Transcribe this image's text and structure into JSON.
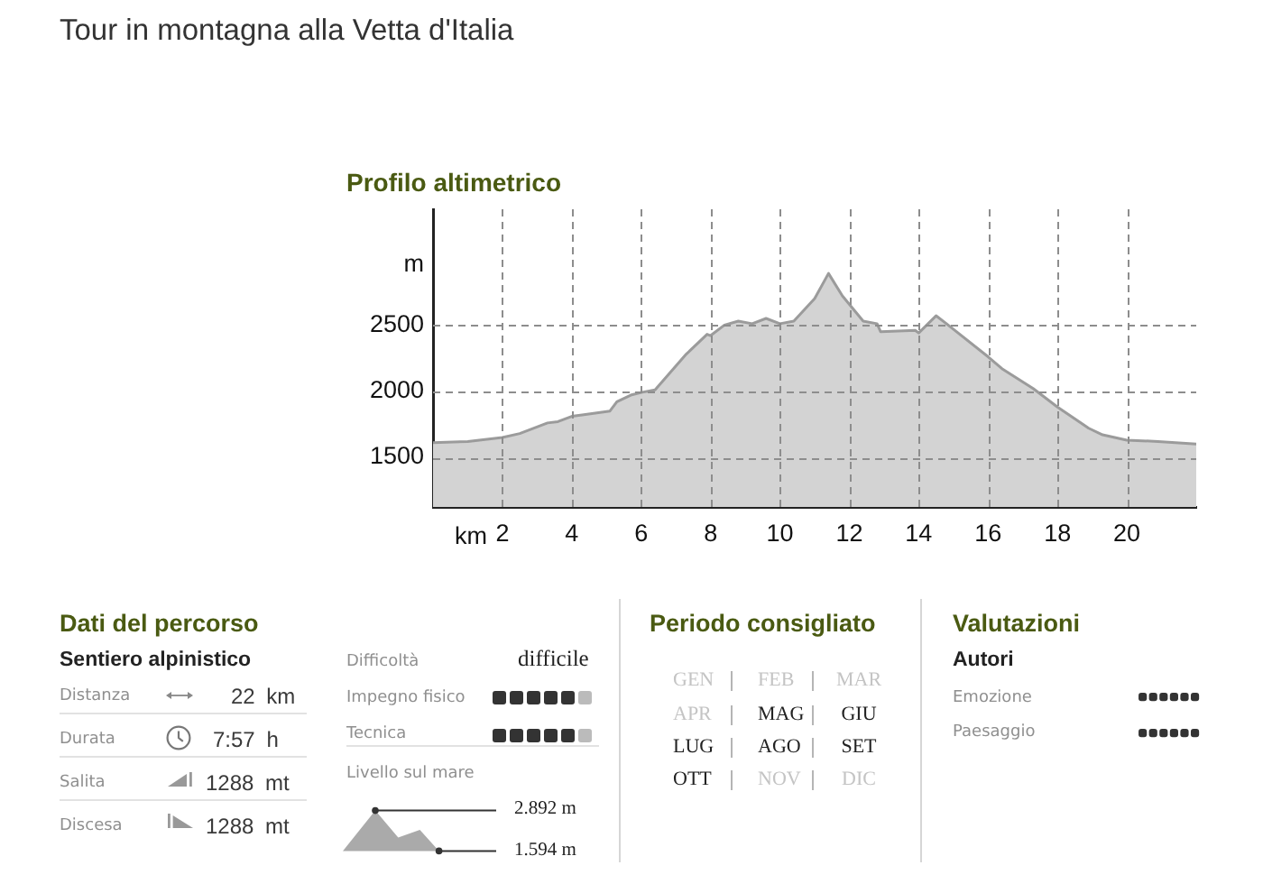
{
  "chart_data": [
    {
      "type": "area",
      "title": "Tour in montagna alla Vetta d'Italia",
      "subtitle": "Profilo altimetrico",
      "xlabel": "km",
      "ylabel": "m",
      "color": "#d3d3d3",
      "x": [
        0,
        1,
        2,
        2.5,
        3.3,
        3.6,
        4,
        4.3,
        5.1,
        5.3,
        5.7,
        6,
        6.4,
        7.3,
        7.9,
        8,
        8.4,
        8.8,
        9.2,
        9.6,
        10,
        10.4,
        11,
        11.4,
        11.8,
        12.4,
        12.8,
        12.9,
        13.9,
        14,
        14.5,
        14.8,
        16,
        16.4,
        17.3,
        18,
        18.9,
        19.3,
        20,
        20.9,
        22
      ],
      "values": [
        1610,
        1620,
        1650,
        1680,
        1760,
        1770,
        1810,
        1820,
        1850,
        1920,
        1970,
        1990,
        2010,
        2280,
        2430,
        2420,
        2500,
        2530,
        2510,
        2550,
        2510,
        2530,
        2700,
        2890,
        2720,
        2530,
        2510,
        2450,
        2460,
        2440,
        2570,
        2510,
        2260,
        2170,
        2020,
        1880,
        1720,
        1670,
        1630,
        1620,
        1600
      ],
      "xlim": [
        0,
        22
      ],
      "xticks": [
        2,
        4,
        6,
        8,
        10,
        12,
        14,
        16,
        18,
        20
      ],
      "ylim": [
        1125,
        3375
      ],
      "yticks": [
        1500,
        2000,
        2500
      ],
      "grid": true
    },
    {
      "type": "other",
      "title": "Dati del percorso",
      "annotations": [
        "Sentiero alpinistico",
        "Distanza",
        "22 km",
        "Durata",
        "7:57 h",
        "Salita",
        "1288 mt",
        "Discesa",
        "1288 mt",
        "Difficoltà",
        "difficile",
        "Impegno fisico",
        "Tecnica",
        "Livello sul mare",
        "2.892 m",
        "1.594 m"
      ]
    },
    {
      "type": "other",
      "title": "Periodo consigliato",
      "categories": [
        "GEN",
        "FEB",
        "MAR",
        "APR",
        "MAG",
        "GIU",
        "LUG",
        "AGO",
        "SET",
        "OTT",
        "NOV",
        "DIC"
      ],
      "colors": [
        "#c4c4c4",
        "#c4c4c4",
        "#c4c4c4",
        "#c4c4c4",
        "#222222",
        "#222222",
        "#222222",
        "#222222",
        "#222222",
        "#222222",
        "#c4c4c4",
        "#c4c4c4"
      ]
    },
    {
      "type": "other",
      "title": "Valutazioni",
      "annotations": [
        "Autori",
        "Emozione",
        "Paesaggio"
      ]
    }
  ]
}
